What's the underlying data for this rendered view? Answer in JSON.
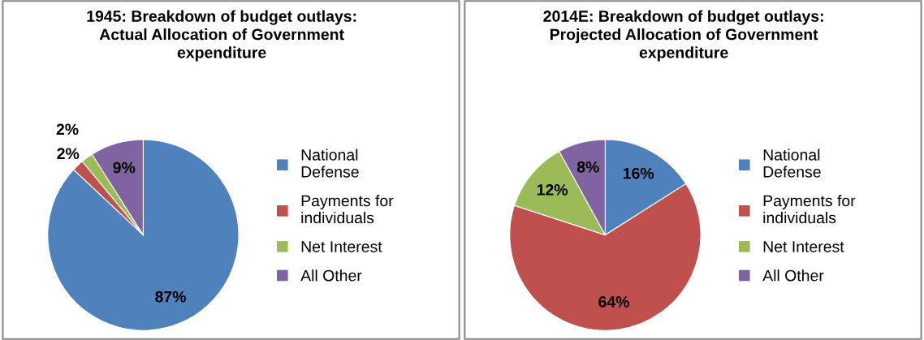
{
  "chart_data": [
    {
      "type": "pie",
      "title": "1945: Breakdown of budget outlays:\nActual Allocation of Government\nexpenditure",
      "categories": [
        "National Defense",
        "Payments for individuals",
        "Net Interest",
        "All Other"
      ],
      "values": [
        87,
        2,
        2,
        9
      ],
      "value_labels": [
        "87%",
        "2%",
        "2%",
        "9%"
      ],
      "colors": [
        "#4f81bd",
        "#c0504d",
        "#9bbb59",
        "#8064a2"
      ],
      "legend": "right"
    },
    {
      "type": "pie",
      "title": "2014E: Breakdown of budget outlays:\nProjected Allocation of Government\nexpenditure",
      "categories": [
        "National Defense",
        "Payments for individuals",
        "Net Interest",
        "All Other"
      ],
      "values": [
        16,
        64,
        12,
        8
      ],
      "value_labels": [
        "16%",
        "64%",
        "12%",
        "8%"
      ],
      "colors": [
        "#4f81bd",
        "#c0504d",
        "#9bbb59",
        "#8064a2"
      ],
      "legend": "right"
    }
  ]
}
